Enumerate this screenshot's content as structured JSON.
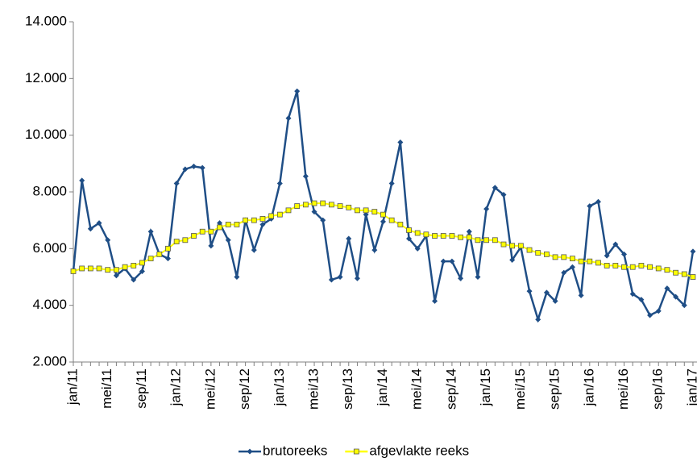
{
  "chart_data": {
    "type": "line",
    "categories": [
      "jan/11",
      null,
      null,
      null,
      "mei/11",
      null,
      null,
      null,
      "sep/11",
      null,
      null,
      null,
      "jan/12",
      null,
      null,
      null,
      "mei/12",
      null,
      null,
      null,
      "sep/12",
      null,
      null,
      null,
      "jan/13",
      null,
      null,
      null,
      "mei/13",
      null,
      null,
      null,
      "sep/13",
      null,
      null,
      null,
      "jan/14",
      null,
      null,
      null,
      "mei/14",
      null,
      null,
      null,
      "sep/14",
      null,
      null,
      null,
      "jan/15",
      null,
      null,
      null,
      "mei/15",
      null,
      null,
      null,
      "sep/15",
      null,
      null,
      null,
      "jan/16",
      null,
      null,
      null,
      "mei/16",
      null,
      null,
      null,
      "sep/16",
      null,
      null,
      null,
      "jan/17"
    ],
    "series": [
      {
        "name": "brutoreeks",
        "color": "#1f4e86",
        "marker": "diamond",
        "values": [
          5200,
          8400,
          6700,
          6900,
          6300,
          5050,
          5300,
          4900,
          5200,
          6600,
          5800,
          5650,
          8300,
          8800,
          8900,
          8850,
          6100,
          6900,
          6300,
          5000,
          7000,
          5950,
          6850,
          7050,
          8300,
          10600,
          11550,
          8550,
          7300,
          7000,
          4900,
          5000,
          6350,
          4950,
          7200,
          5950,
          6950,
          8300,
          9750,
          6350,
          6000,
          6450,
          4150,
          5550,
          5550,
          4950,
          6600,
          5000,
          7400,
          8150,
          7900,
          5600,
          6050,
          4500,
          3500,
          4450,
          4150,
          5150,
          5350,
          4350,
          7500,
          7650,
          5750,
          6150,
          5800,
          4400,
          4200,
          3650,
          3800,
          4600,
          4300,
          4000,
          5900
        ]
      },
      {
        "name": "afgevlakte reeks",
        "color": "#ffff00",
        "marker": "square",
        "values": [
          5200,
          5300,
          5300,
          5300,
          5250,
          5250,
          5350,
          5400,
          5500,
          5650,
          5800,
          6000,
          6250,
          6300,
          6450,
          6600,
          6600,
          6750,
          6850,
          6850,
          7000,
          7000,
          7050,
          7150,
          7200,
          7350,
          7500,
          7550,
          7600,
          7600,
          7550,
          7500,
          7450,
          7350,
          7350,
          7300,
          7200,
          7000,
          6850,
          6650,
          6550,
          6500,
          6450,
          6450,
          6450,
          6400,
          6400,
          6300,
          6300,
          6300,
          6150,
          6100,
          6100,
          5950,
          5850,
          5800,
          5700,
          5700,
          5650,
          5550,
          5550,
          5500,
          5400,
          5400,
          5350,
          5350,
          5400,
          5350,
          5300,
          5250,
          5150,
          5100,
          5000
        ]
      }
    ],
    "ylim": [
      2000,
      14000
    ],
    "yticks": [
      {
        "value": 2000,
        "label": "2.000"
      },
      {
        "value": 4000,
        "label": "4.000"
      },
      {
        "value": 6000,
        "label": "6.000"
      },
      {
        "value": 8000,
        "label": "8.000"
      },
      {
        "value": 10000,
        "label": "10.000"
      },
      {
        "value": 12000,
        "label": "12.000"
      },
      {
        "value": 14000,
        "label": "14.000"
      }
    ],
    "legend": "bottom"
  }
}
